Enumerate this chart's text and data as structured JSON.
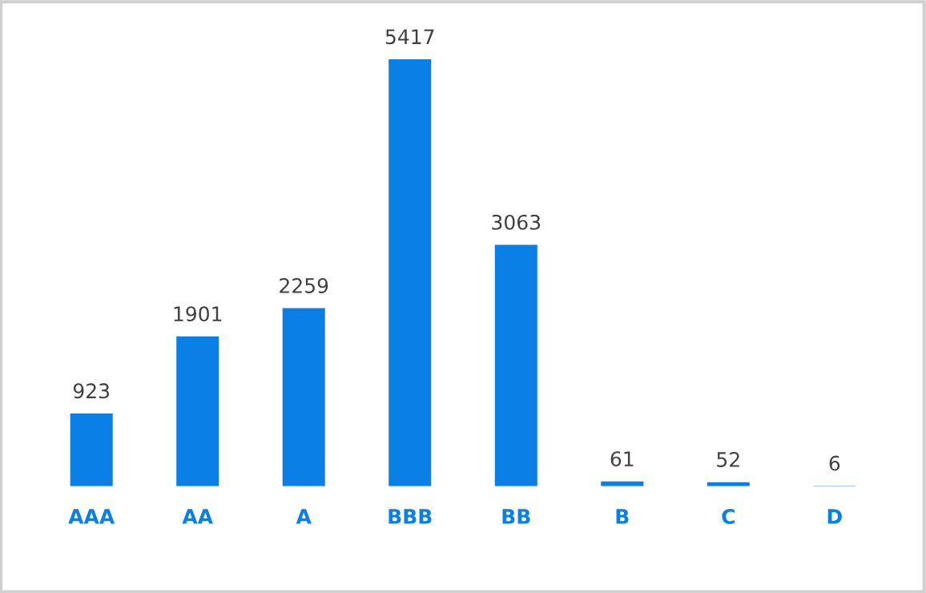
{
  "chart_data": {
    "type": "bar",
    "categories": [
      "AAA",
      "AA",
      "A",
      "BBB",
      "BB",
      "B",
      "C",
      "D"
    ],
    "values": [
      923,
      1901,
      2259,
      5417,
      3063,
      61,
      52,
      6
    ],
    "color": "#0a7fe6",
    "data_labels": true,
    "grid": false,
    "legend": false
  }
}
